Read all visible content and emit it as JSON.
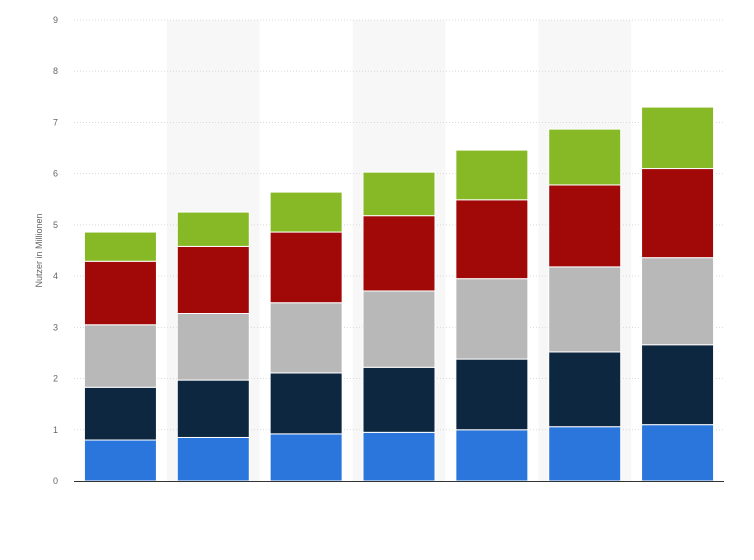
{
  "chart_data": {
    "type": "bar",
    "stacked": true,
    "ylabel": "Nutzer in Millionen",
    "xlabel": "",
    "ylim": [
      0,
      9
    ],
    "yticks": [
      0,
      1,
      2,
      3,
      4,
      5,
      6,
      7,
      8,
      9
    ],
    "grid": true,
    "categories": [
      "",
      "",
      "",
      "",
      "",
      "",
      ""
    ],
    "series": [
      {
        "color": "#2a76dd",
        "values": [
          0.8,
          0.85,
          0.92,
          0.95,
          1.0,
          1.06,
          1.1
        ]
      },
      {
        "color": "#0e2740",
        "values": [
          1.03,
          1.12,
          1.19,
          1.27,
          1.38,
          1.46,
          1.56
        ]
      },
      {
        "color": "#b8b8b8",
        "values": [
          1.22,
          1.3,
          1.37,
          1.49,
          1.57,
          1.66,
          1.7
        ]
      },
      {
        "color": "#a10808",
        "values": [
          1.24,
          1.31,
          1.38,
          1.47,
          1.54,
          1.6,
          1.74
        ]
      },
      {
        "color": "#86b925",
        "values": [
          0.57,
          0.67,
          0.78,
          0.85,
          0.97,
          1.09,
          1.2
        ]
      }
    ]
  }
}
